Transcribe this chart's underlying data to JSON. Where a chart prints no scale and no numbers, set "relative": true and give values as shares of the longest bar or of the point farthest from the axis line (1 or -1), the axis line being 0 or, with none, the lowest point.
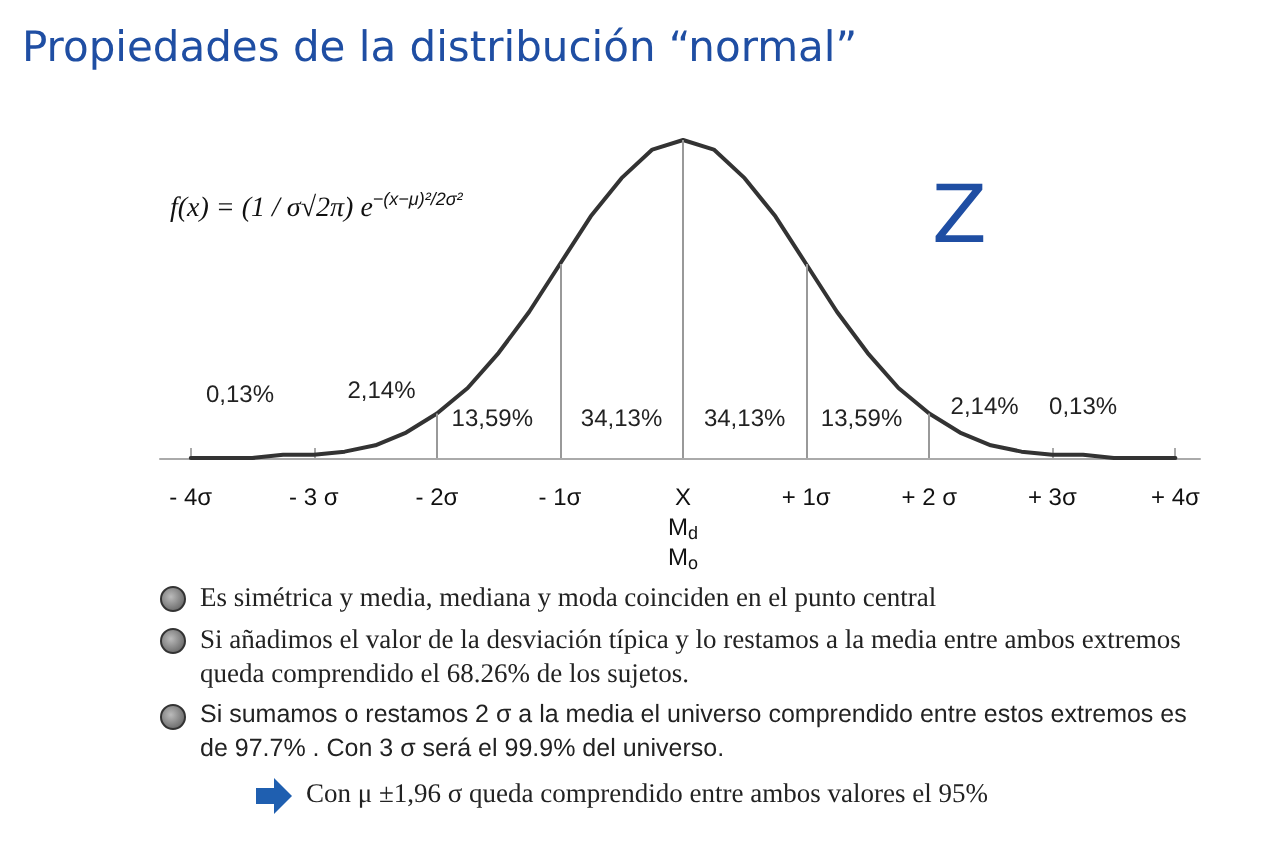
{
  "chart_data": {
    "type": "line",
    "relative": true,
    "title": "Propiedades de la distribución “normal”",
    "x": [
      -4,
      -3.75,
      -3.5,
      -3.25,
      -3,
      -2.75,
      -2.5,
      -2.25,
      -2,
      -1.75,
      -1.5,
      -1.25,
      -1,
      -0.75,
      -0.5,
      -0.25,
      0,
      0.25,
      0.5,
      0.75,
      1,
      1.25,
      1.5,
      1.75,
      2,
      2.25,
      2.5,
      2.75,
      3,
      3.25,
      3.5,
      3.75,
      4
    ],
    "series": [
      {
        "color": "#333333",
        "values": [
          0,
          0,
          0,
          0.01,
          0.01,
          0.02,
          0.04,
          0.08,
          0.14,
          0.22,
          0.33,
          0.46,
          0.61,
          0.76,
          0.88,
          0.97,
          1,
          0.97,
          0.88,
          0.76,
          0.61,
          0.46,
          0.33,
          0.22,
          0.14,
          0.08,
          0.04,
          0.02,
          0.01,
          0.01,
          0,
          0,
          0
        ]
      }
    ],
    "xlim": [
      -4.25,
      4.2
    ],
    "xticks": [
      {
        "value": -4,
        "label": "- 4σ"
      },
      {
        "value": -3,
        "label": "- 3 σ"
      },
      {
        "value": -2,
        "label": "- 2σ"
      },
      {
        "value": -1,
        "label": "- 1σ"
      },
      {
        "value": 0,
        "label": "X\nM$_{d}$\nM$_{o}$"
      },
      {
        "value": 1,
        "label": "+ 1σ"
      },
      {
        "value": 2,
        "label": "+ 2 σ"
      },
      {
        "value": 3,
        "label": "+ 3σ"
      },
      {
        "value": 4,
        "label": "+ 4σ"
      }
    ],
    "tick_labels": "x",
    "grid": false,
    "marker": "none",
    "line_style": "solid",
    "ref_lines": [
      {
        "axis": "x",
        "value": -2,
        "color": "#999999"
      },
      {
        "axis": "x",
        "value": -1,
        "color": "#999999"
      },
      {
        "axis": "x",
        "value": 0,
        "color": "#999999"
      },
      {
        "axis": "x",
        "value": 1,
        "color": "#999999"
      },
      {
        "axis": "x",
        "value": 2,
        "color": "#999999"
      }
    ],
    "annotations": [
      "f(x) = (1 / σ√2π) e$^{−(x−μ)²/2σ²}$",
      "Z",
      "0,13%",
      "2,14%",
      "13,59%",
      "34,13%",
      "34,13%",
      "13,59%",
      "2,14%",
      "0,13%",
      "Es simétrica y media, mediana y moda coinciden en el punto central",
      "Si añadimos el valor de la desviación típica y lo restamos a la media entre ambos extremos queda comprendido el 68.26% de los sujetos.",
      "Si sumamos o restamos 2 σ  a la media el universo comprendido entre estos extremos es de 97.7% . Con 3 σ  será el 99.9% del universo.",
      "Con μ ±1,96 σ queda comprendido entre ambos valores el 95%"
    ]
  }
}
